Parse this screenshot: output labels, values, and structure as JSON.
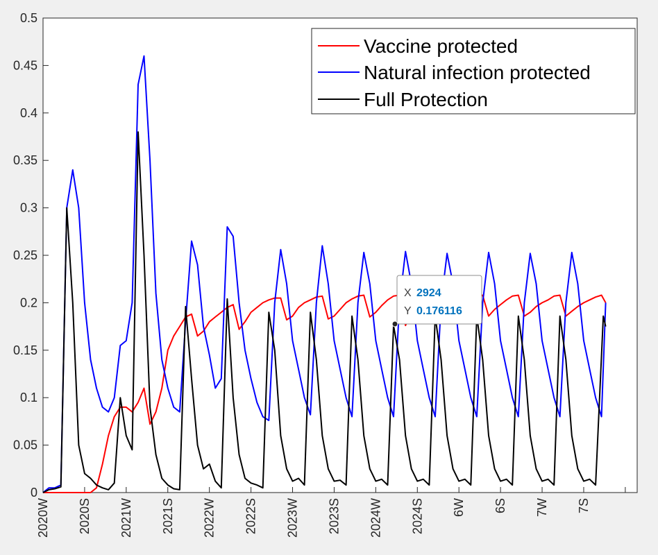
{
  "chart_data": {
    "type": "line",
    "title": "",
    "xlabel": "",
    "ylabel": "",
    "ylim": [
      0,
      0.5
    ],
    "y_ticks": [
      "0",
      "0.05",
      "0.1",
      "0.15",
      "0.2",
      "0.25",
      "0.3",
      "0.35",
      "0.4",
      "0.45",
      "0.5"
    ],
    "x_tick_labels": [
      "2020W",
      "2020S",
      "2021W",
      "2021S",
      "2022W",
      "2022S",
      "2023W",
      "2023S",
      "2024W",
      "2024S",
      "6W",
      "6S",
      "7W",
      "7S",
      ""
    ],
    "grid": false,
    "legend_position": "top-right",
    "series": [
      {
        "name": "Vaccine protected",
        "color": "#ff0000",
        "points": [
          [
            0,
            0
          ],
          [
            2,
            0
          ],
          [
            4,
            0
          ],
          [
            6,
            0
          ],
          [
            8,
            0
          ],
          [
            9,
            0.005
          ],
          [
            10,
            0.03
          ],
          [
            11,
            0.06
          ],
          [
            12,
            0.08
          ],
          [
            13,
            0.09
          ],
          [
            14,
            0.09
          ],
          [
            15,
            0.085
          ],
          [
            16,
            0.095
          ],
          [
            17,
            0.11
          ],
          [
            18,
            0.072
          ],
          [
            19,
            0.085
          ],
          [
            20,
            0.11
          ],
          [
            21,
            0.15
          ],
          [
            22,
            0.165
          ],
          [
            23,
            0.175
          ],
          [
            24,
            0.185
          ],
          [
            25,
            0.188
          ],
          [
            26,
            0.165
          ],
          [
            27,
            0.17
          ],
          [
            28,
            0.18
          ],
          [
            29,
            0.185
          ],
          [
            30,
            0.19
          ],
          [
            31,
            0.195
          ],
          [
            32,
            0.198
          ],
          [
            33,
            0.172
          ],
          [
            34,
            0.18
          ],
          [
            35,
            0.19
          ],
          [
            36,
            0.195
          ],
          [
            37,
            0.2
          ],
          [
            38,
            0.203
          ],
          [
            39,
            0.205
          ],
          [
            40,
            0.205
          ],
          [
            41,
            0.182
          ],
          [
            42,
            0.186
          ],
          [
            43,
            0.195
          ],
          [
            44,
            0.2
          ],
          [
            45,
            0.203
          ],
          [
            46,
            0.206
          ],
          [
            47,
            0.207
          ],
          [
            48,
            0.183
          ],
          [
            49,
            0.186
          ],
          [
            50,
            0.193
          ],
          [
            51,
            0.2
          ],
          [
            52,
            0.204
          ],
          [
            53,
            0.207
          ],
          [
            54,
            0.208
          ],
          [
            55,
            0.185
          ],
          [
            56,
            0.19
          ],
          [
            57,
            0.197
          ],
          [
            58,
            0.203
          ],
          [
            59,
            0.207
          ],
          [
            60,
            0.208
          ],
          [
            61,
            0.176
          ],
          [
            62,
            0.188
          ],
          [
            63,
            0.196
          ],
          [
            64,
            0.2
          ],
          [
            65,
            0.203
          ],
          [
            66,
            0.207
          ],
          [
            67,
            0.208
          ],
          [
            68,
            0.186
          ],
          [
            69,
            0.191
          ],
          [
            70,
            0.196
          ],
          [
            71,
            0.2
          ],
          [
            72,
            0.203
          ],
          [
            73,
            0.206
          ],
          [
            74,
            0.208
          ],
          [
            75,
            0.186
          ],
          [
            76,
            0.193
          ],
          [
            77,
            0.198
          ],
          [
            78,
            0.203
          ],
          [
            79,
            0.207
          ],
          [
            80,
            0.208
          ],
          [
            81,
            0.186
          ],
          [
            82,
            0.19
          ],
          [
            83,
            0.196
          ],
          [
            84,
            0.2
          ],
          [
            85,
            0.203
          ],
          [
            86,
            0.207
          ],
          [
            87,
            0.208
          ],
          [
            88,
            0.186
          ],
          [
            89,
            0.191
          ],
          [
            90,
            0.196
          ],
          [
            91,
            0.2
          ],
          [
            92,
            0.203
          ],
          [
            93,
            0.206
          ],
          [
            94,
            0.208
          ],
          [
            94.7,
            0.2
          ]
        ]
      },
      {
        "name": "Natural infection protected",
        "color": "#0000ff",
        "points": [
          [
            0,
            0
          ],
          [
            1,
            0.005
          ],
          [
            2,
            0.005
          ],
          [
            3,
            0.008
          ],
          [
            4,
            0.3
          ],
          [
            5,
            0.34
          ],
          [
            6,
            0.3
          ],
          [
            7,
            0.2
          ],
          [
            8,
            0.14
          ],
          [
            9,
            0.11
          ],
          [
            10,
            0.09
          ],
          [
            11,
            0.085
          ],
          [
            12,
            0.1
          ],
          [
            13,
            0.155
          ],
          [
            14,
            0.16
          ],
          [
            15,
            0.2
          ],
          [
            16,
            0.43
          ],
          [
            17,
            0.46
          ],
          [
            18,
            0.35
          ],
          [
            19,
            0.21
          ],
          [
            20,
            0.14
          ],
          [
            21,
            0.11
          ],
          [
            22,
            0.09
          ],
          [
            23,
            0.085
          ],
          [
            24,
            0.18
          ],
          [
            25,
            0.265
          ],
          [
            26,
            0.24
          ],
          [
            27,
            0.175
          ],
          [
            28,
            0.145
          ],
          [
            29,
            0.11
          ],
          [
            30,
            0.12
          ],
          [
            31,
            0.28
          ],
          [
            32,
            0.27
          ],
          [
            33,
            0.2
          ],
          [
            34,
            0.15
          ],
          [
            35,
            0.12
          ],
          [
            36,
            0.095
          ],
          [
            37,
            0.08
          ],
          [
            38,
            0.076
          ],
          [
            39,
            0.2
          ],
          [
            40,
            0.256
          ],
          [
            41,
            0.22
          ],
          [
            42,
            0.16
          ],
          [
            43,
            0.13
          ],
          [
            44,
            0.1
          ],
          [
            45,
            0.082
          ],
          [
            46,
            0.2
          ],
          [
            47,
            0.26
          ],
          [
            48,
            0.22
          ],
          [
            49,
            0.16
          ],
          [
            50,
            0.13
          ],
          [
            51,
            0.1
          ],
          [
            52,
            0.08
          ],
          [
            53,
            0.2
          ],
          [
            54,
            0.253
          ],
          [
            55,
            0.22
          ],
          [
            56,
            0.16
          ],
          [
            57,
            0.13
          ],
          [
            58,
            0.1
          ],
          [
            59,
            0.08
          ],
          [
            60,
            0.2
          ],
          [
            61,
            0.254
          ],
          [
            62,
            0.22
          ],
          [
            63,
            0.16
          ],
          [
            64,
            0.13
          ],
          [
            65,
            0.1
          ],
          [
            66,
            0.08
          ],
          [
            67,
            0.2
          ],
          [
            68,
            0.252
          ],
          [
            69,
            0.22
          ],
          [
            70,
            0.16
          ],
          [
            71,
            0.13
          ],
          [
            72,
            0.1
          ],
          [
            73,
            0.08
          ],
          [
            74,
            0.2
          ],
          [
            75,
            0.253
          ],
          [
            76,
            0.22
          ],
          [
            77,
            0.16
          ],
          [
            78,
            0.13
          ],
          [
            79,
            0.1
          ],
          [
            80,
            0.08
          ],
          [
            81,
            0.2
          ],
          [
            82,
            0.252
          ],
          [
            83,
            0.22
          ],
          [
            84,
            0.16
          ],
          [
            85,
            0.13
          ],
          [
            86,
            0.1
          ],
          [
            87,
            0.08
          ],
          [
            88,
            0.2
          ],
          [
            89,
            0.253
          ],
          [
            90,
            0.22
          ],
          [
            91,
            0.16
          ],
          [
            92,
            0.13
          ],
          [
            93,
            0.1
          ],
          [
            94,
            0.08
          ],
          [
            94.7,
            0.2
          ]
        ]
      },
      {
        "name": "Full Protection",
        "color": "#000000",
        "points": [
          [
            0,
            0
          ],
          [
            1,
            0.003
          ],
          [
            2,
            0.004
          ],
          [
            3,
            0.006
          ],
          [
            4,
            0.3
          ],
          [
            5,
            0.2
          ],
          [
            6,
            0.05
          ],
          [
            7,
            0.02
          ],
          [
            8,
            0.015
          ],
          [
            9,
            0.008
          ],
          [
            10,
            0.005
          ],
          [
            11,
            0.003
          ],
          [
            12,
            0.01
          ],
          [
            13,
            0.1
          ],
          [
            14,
            0.06
          ],
          [
            15,
            0.045
          ],
          [
            16,
            0.38
          ],
          [
            17,
            0.25
          ],
          [
            18,
            0.09
          ],
          [
            19,
            0.04
          ],
          [
            20,
            0.015
          ],
          [
            21,
            0.008
          ],
          [
            22,
            0.004
          ],
          [
            23,
            0.003
          ],
          [
            24,
            0.196
          ],
          [
            25,
            0.12
          ],
          [
            26,
            0.05
          ],
          [
            27,
            0.025
          ],
          [
            28,
            0.03
          ],
          [
            29,
            0.012
          ],
          [
            30,
            0.005
          ],
          [
            31,
            0.204
          ],
          [
            32,
            0.1
          ],
          [
            33,
            0.04
          ],
          [
            34,
            0.015
          ],
          [
            35,
            0.01
          ],
          [
            36,
            0.008
          ],
          [
            37,
            0.005
          ],
          [
            38,
            0.19
          ],
          [
            39,
            0.15
          ],
          [
            40,
            0.06
          ],
          [
            41,
            0.025
          ],
          [
            42,
            0.012
          ],
          [
            43,
            0.015
          ],
          [
            44,
            0.008
          ],
          [
            45,
            0.19
          ],
          [
            46,
            0.14
          ],
          [
            47,
            0.06
          ],
          [
            48,
            0.025
          ],
          [
            49,
            0.012
          ],
          [
            50,
            0.013
          ],
          [
            51,
            0.008
          ],
          [
            52,
            0.186
          ],
          [
            53,
            0.14
          ],
          [
            54,
            0.06
          ],
          [
            55,
            0.025
          ],
          [
            56,
            0.012
          ],
          [
            57,
            0.014
          ],
          [
            58,
            0.008
          ],
          [
            59,
            0.176
          ],
          [
            60,
            0.14
          ],
          [
            61,
            0.06
          ],
          [
            62,
            0.025
          ],
          [
            63,
            0.012
          ],
          [
            64,
            0.014
          ],
          [
            65,
            0.008
          ],
          [
            66,
            0.186
          ],
          [
            67,
            0.14
          ],
          [
            68,
            0.06
          ],
          [
            69,
            0.025
          ],
          [
            70,
            0.012
          ],
          [
            71,
            0.014
          ],
          [
            72,
            0.008
          ],
          [
            73,
            0.186
          ],
          [
            74,
            0.14
          ],
          [
            75,
            0.06
          ],
          [
            76,
            0.025
          ],
          [
            77,
            0.012
          ],
          [
            78,
            0.014
          ],
          [
            79,
            0.008
          ],
          [
            80,
            0.186
          ],
          [
            81,
            0.14
          ],
          [
            82,
            0.06
          ],
          [
            83,
            0.025
          ],
          [
            84,
            0.012
          ],
          [
            85,
            0.014
          ],
          [
            86,
            0.008
          ],
          [
            87,
            0.186
          ],
          [
            88,
            0.14
          ],
          [
            89,
            0.06
          ],
          [
            90,
            0.025
          ],
          [
            91,
            0.012
          ],
          [
            92,
            0.014
          ],
          [
            93,
            0.008
          ],
          [
            94.3,
            0.186
          ],
          [
            94.7,
            0.175
          ]
        ]
      }
    ]
  },
  "datatip": {
    "x_label": "X",
    "x_value": "2924",
    "y_label": "Y",
    "y_value": "0.176116"
  }
}
